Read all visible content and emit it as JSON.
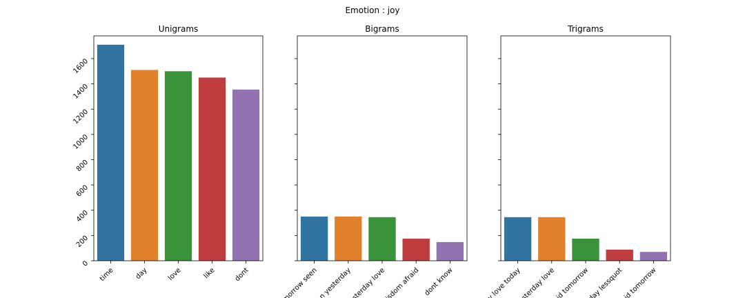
{
  "suptitle": "Emotion : joy",
  "chart_data": [
    {
      "type": "bar",
      "title": "Unigrams",
      "categories": [
        "time",
        "day",
        "love",
        "like",
        "dont"
      ],
      "values": [
        1710,
        1510,
        1500,
        1450,
        1355
      ],
      "colors": [
        "#3274a1",
        "#e1812c",
        "#3a923a",
        "#c03d3e",
        "#9372b2"
      ],
      "ylim": [
        0,
        1780
      ],
      "yticks": [
        0,
        200,
        400,
        600,
        800,
        1000,
        1200,
        1400,
        1600
      ],
      "ytick_labels_visible": true
    },
    {
      "type": "bar",
      "title": "Bigrams",
      "categories": [
        "morrow seen",
        "n yesterday",
        "esterday love",
        "isdom afraid",
        "dont know"
      ],
      "values": [
        350,
        350,
        345,
        175,
        148
      ],
      "colors": [
        "#3274a1",
        "#e1812c",
        "#3a923a",
        "#c03d3e",
        "#9372b2"
      ],
      "ylim": [
        0,
        1780
      ],
      "yticks": [
        0,
        200,
        400,
        600,
        800,
        1000,
        1200,
        1400,
        1600
      ],
      "ytick_labels_visible": false
    },
    {
      "type": "bar",
      "title": "Trigrams",
      "categories": [
        "y love today",
        "esterday love",
        "id tomorrow",
        "day lessquot",
        "id tomorrow"
      ],
      "values": [
        345,
        345,
        175,
        88,
        70
      ],
      "colors": [
        "#3274a1",
        "#e1812c",
        "#3a923a",
        "#c03d3e",
        "#9372b2"
      ],
      "ylim": [
        0,
        1780
      ],
      "yticks": [
        0,
        200,
        400,
        600,
        800,
        1000,
        1200,
        1400,
        1600
      ],
      "ytick_labels_visible": false
    }
  ]
}
